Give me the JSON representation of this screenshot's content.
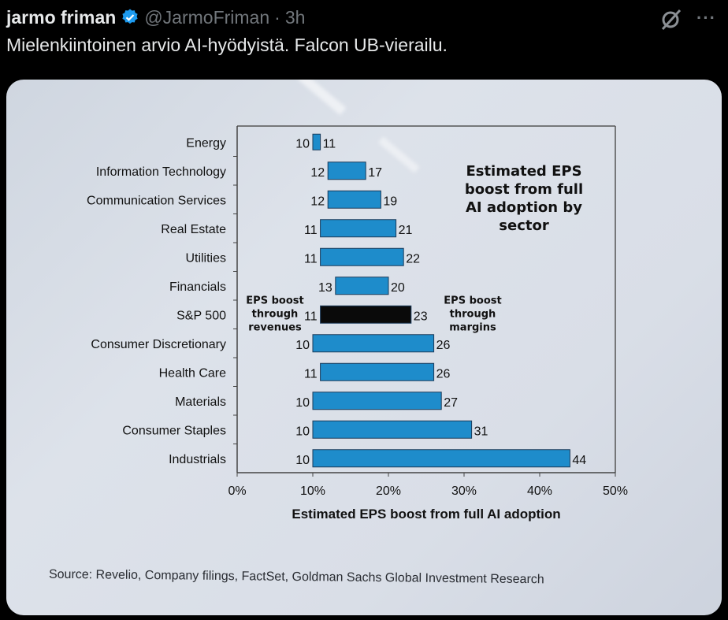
{
  "tweet": {
    "author_name": "jarmo friman",
    "verified": true,
    "handle": "@JarmoFriman",
    "separator": "·",
    "time": "3h",
    "text": "Mielenkiintoinen arvio AI-hyödyistä. Falcon UB-vierailu.",
    "icons": [
      "verified-badge-icon",
      "grok-icon",
      "more-options-icon"
    ],
    "more_label": "···"
  },
  "colors": {
    "bar": "#1e8ccb",
    "bar_highlight": "#0a0a0a",
    "bar_border": "#1b3b5a",
    "text": "#111111"
  },
  "chart_data": {
    "type": "bar",
    "orientation": "horizontal-floating",
    "title": "Estimated EPS boost from full AI adoption by sector",
    "title_lines": [
      "Estimated EPS",
      "boost from full",
      "AI adoption by",
      "sector"
    ],
    "xlabel": "Estimated EPS boost from full AI adoption",
    "ylabel": "",
    "xlim": [
      0,
      50
    ],
    "xticks": [
      "0%",
      "10%",
      "20%",
      "30%",
      "40%",
      "50%"
    ],
    "categories": [
      "Energy",
      "Information Technology",
      "Communication Services",
      "Real Estate",
      "Utilities",
      "Financials",
      "S&P 500",
      "Consumer Discretionary",
      "Health Care",
      "Materials",
      "Consumer Staples",
      "Industrials"
    ],
    "series": [
      {
        "name": "EPS boost through revenues",
        "values": [
          10,
          12,
          12,
          11,
          11,
          13,
          11,
          10,
          11,
          10,
          10,
          10
        ]
      },
      {
        "name": "EPS boost through margins (end)",
        "values": [
          11,
          17,
          19,
          21,
          22,
          20,
          23,
          26,
          26,
          27,
          31,
          44
        ]
      }
    ],
    "highlight_category": "S&P 500",
    "annotations": {
      "left": [
        "EPS boost",
        "through",
        "revenues"
      ],
      "right": [
        "EPS boost",
        "through",
        "margins"
      ]
    },
    "grid": false,
    "source": "Source: Revelio, Company filings, FactSet, Goldman Sachs Global Investment Research"
  }
}
